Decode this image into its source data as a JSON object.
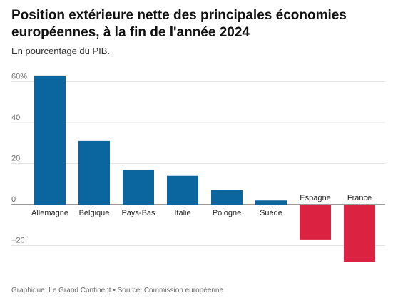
{
  "chart_data": {
    "type": "bar",
    "title": "Position extérieure nette des principales économies européennes, à la fin de l'année 2024",
    "subtitle": "En pourcentage du PIB.",
    "categories": [
      "Allemagne",
      "Belgique",
      "Pays-Bas",
      "Italie",
      "Pologne",
      "Suède",
      "Espagne",
      "France"
    ],
    "values": [
      63,
      31,
      17,
      14,
      7,
      2,
      -17,
      -28
    ],
    "ylim": [
      -28,
      63
    ],
    "yticks": [
      -20,
      0,
      20,
      40,
      60
    ],
    "ytick_labels": [
      "−20",
      "0",
      "20",
      "40",
      "60%"
    ],
    "grid": true,
    "colors": {
      "positive": "#0b66a0",
      "negative": "#dc2241"
    }
  },
  "footer": "Graphique: Le Grand Continent • Source: Commission européenne"
}
